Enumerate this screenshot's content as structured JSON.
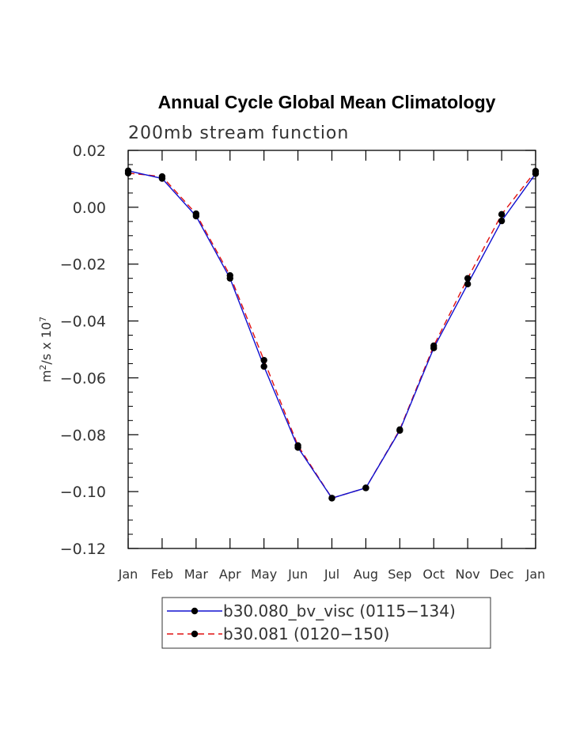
{
  "chart_data": {
    "type": "line",
    "title": "Annual Cycle Global Mean Climatology",
    "subtitle": "200mb stream function",
    "xlabel": "",
    "ylabel": "m2/s x 107",
    "ylabel_parts": {
      "prefix": "m",
      "prefix_sup": "2",
      "middle": "/s x 10",
      "suffix_sup": "7"
    },
    "ylim": [
      -0.12,
      0.02
    ],
    "yticks": [
      0.02,
      0.0,
      -0.02,
      -0.04,
      -0.06,
      -0.08,
      -0.1,
      -0.12
    ],
    "ytick_labels": [
      "0.02",
      "0.00",
      "−0.02",
      "−0.04",
      "−0.06",
      "−0.08",
      "−0.10",
      "−0.12"
    ],
    "categories": [
      "Jan",
      "Feb",
      "Mar",
      "Apr",
      "May",
      "Jun",
      "Jul",
      "Aug",
      "Sep",
      "Oct",
      "Nov",
      "Dec",
      "Jan"
    ],
    "series": [
      {
        "name": "b30.080_bv_visc (0115−134)",
        "color": "#1010d0",
        "dash": "solid",
        "values": [
          0.0128,
          0.0101,
          -0.0031,
          -0.025,
          -0.056,
          -0.0845,
          -0.1023,
          -0.0987,
          -0.0785,
          -0.0495,
          -0.027,
          -0.0048,
          0.0118
        ]
      },
      {
        "name": "b30.081 (0120−150)",
        "color": "#e01010",
        "dash": "dashed",
        "values": [
          0.012,
          0.0108,
          -0.0023,
          -0.024,
          -0.0538,
          -0.0838,
          -0.1023,
          -0.0987,
          -0.0782,
          -0.0487,
          -0.025,
          -0.0025,
          0.0127
        ]
      }
    ],
    "legend_position": "bottom-center",
    "grid": false
  }
}
